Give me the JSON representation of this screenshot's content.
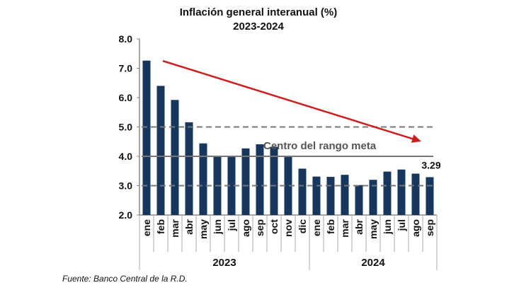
{
  "chart_data": {
    "type": "bar",
    "title": "Inflación general interanual (%)",
    "subtitle": "2023-2024",
    "categories": [
      "ene",
      "feb",
      "mar",
      "abr",
      "may",
      "jun",
      "jul",
      "ago",
      "sep",
      "oct",
      "nov",
      "dic",
      "ene",
      "feb",
      "mar",
      "abr",
      "may",
      "jun",
      "jul",
      "ago",
      "sep"
    ],
    "groups": [
      {
        "label": "2023",
        "count": 12
      },
      {
        "label": "2024",
        "count": 9
      }
    ],
    "values": [
      7.26,
      6.4,
      5.92,
      5.16,
      4.44,
      4.0,
      4.0,
      4.27,
      4.41,
      4.32,
      4.0,
      3.58,
      3.31,
      3.3,
      3.37,
      3.02,
      3.2,
      3.48,
      3.55,
      3.41,
      3.29
    ],
    "ylim": [
      2.0,
      8.0
    ],
    "yticks": [
      "2.0",
      "3.0",
      "4.0",
      "5.0",
      "6.0",
      "7.0",
      "8.0"
    ],
    "reference_lines": [
      {
        "value": 5.0,
        "style": "dashed"
      },
      {
        "value": 4.0,
        "style": "solid",
        "label": "Centro del rango meta"
      },
      {
        "value": 3.0,
        "style": "dashed"
      }
    ],
    "data_label": {
      "index": 20,
      "text": "3.29"
    },
    "trend_arrow": {
      "from": {
        "index": 1,
        "value": 7.25
      },
      "to": {
        "index": 19,
        "value": 4.75
      },
      "color": "#cc1f1f"
    },
    "bar_color": "#17375e",
    "grid": false,
    "source": "Fuente: Banco Central de la R.D."
  }
}
